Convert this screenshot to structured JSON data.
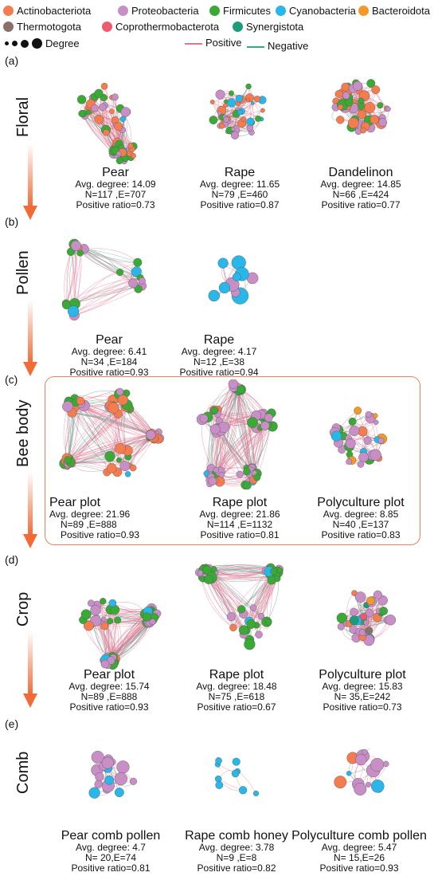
{
  "legend": {
    "phyla": [
      {
        "name": "Actinobacteriota",
        "color": "#f47c4e"
      },
      {
        "name": "Proteobacteria",
        "color": "#c88fc6"
      },
      {
        "name": "Firmicutes",
        "color": "#3aa935"
      },
      {
        "name": "Cyanobacteria",
        "color": "#29b6e8"
      },
      {
        "name": "Bacteroidota",
        "color": "#f39a26"
      },
      {
        "name": "Thermotogota",
        "color": "#8a7068"
      },
      {
        "name": "Coprothermobacterota",
        "color": "#ee5a6e"
      },
      {
        "name": "Synergistota",
        "color": "#1d9c7a"
      }
    ],
    "degree_label": "Degree",
    "positive_label": "Positive",
    "negative_label": "Negative",
    "positive_color": "#e5728f",
    "negative_color": "#3aa48c"
  },
  "rows": [
    {
      "label": "(a)",
      "title": "Floral",
      "panels": [
        {
          "name": "Pear",
          "avg": "Avg. degree: 14.09",
          "ne": "N=117 ,E=707",
          "pos": "Positive ratio=0.73"
        },
        {
          "name": "Rape",
          "avg": "Avg. degree: 11.65",
          "ne": "N=79 ,E=460",
          "pos": "Positive ratio=0.87"
        },
        {
          "name": "Dandelinon",
          "avg": "Avg. degree: 14.85",
          "ne": "N=66 ,E=424",
          "pos": "Positive ratio=0.77"
        }
      ]
    },
    {
      "label": "(b)",
      "title": "Pollen",
      "panels": [
        {
          "name": "Pear",
          "avg": "Avg. degree: 6.41",
          "ne": "N=34 ,E=184",
          "pos": "Positive ratio=0.93"
        },
        {
          "name": "Rape",
          "avg": "Avg. degree: 4.17",
          "ne": "N=12 ,E=38",
          "pos": "Positive ratio=0.94"
        }
      ]
    },
    {
      "label": "(c)",
      "title": "Bee body",
      "panels": [
        {
          "name": "Pear plot",
          "avg": "Avg. degree: 21.96",
          "ne": "N=89 ,E=888",
          "pos": "Positive ratio=0.93"
        },
        {
          "name": "Rape plot",
          "avg": "Avg. degree: 21.86",
          "ne": "N=114 ,E=1132",
          "pos": "Positive ratio=0.81"
        },
        {
          "name": "Polyculture plot",
          "avg": "Avg. degree: 8.85",
          "ne": "N=40 ,E=137",
          "pos": "Positive ratio=0.83"
        }
      ]
    },
    {
      "label": "(d)",
      "title": "Crop",
      "panels": [
        {
          "name": "Pear plot",
          "avg": "Avg. degree: 15.74",
          "ne": "N=89 ,E=888",
          "pos": "Positive ratio=0.93"
        },
        {
          "name": "Rape plot",
          "avg": "Avg. degree: 18.48",
          "ne": "N=75 ,E=618",
          "pos": "Positive ratio=0.67"
        },
        {
          "name": "Polyculture plot",
          "avg": "Avg. degree: 15.83",
          "ne": "N= 35,E=242",
          "pos": "Positive ratio=0.73"
        }
      ]
    },
    {
      "label": "(e)",
      "title": "Comb",
      "panels": [
        {
          "name": "Pear comb pollen",
          "avg": "Avg. degree: 4.7",
          "ne": "N= 20,E=74",
          "pos": "Positive ratio=0.81"
        },
        {
          "name": "Rape comb honey",
          "avg": "Avg. degree: 3.78",
          "ne": "N=9 ,E=8",
          "pos": "Positive ratio=0.82"
        },
        {
          "name": "Polyculture comb pollen",
          "avg": "Avg. degree: 5.47",
          "ne": "N= 15,E=26",
          "pos": "Positive ratio=0.93"
        }
      ]
    }
  ]
}
